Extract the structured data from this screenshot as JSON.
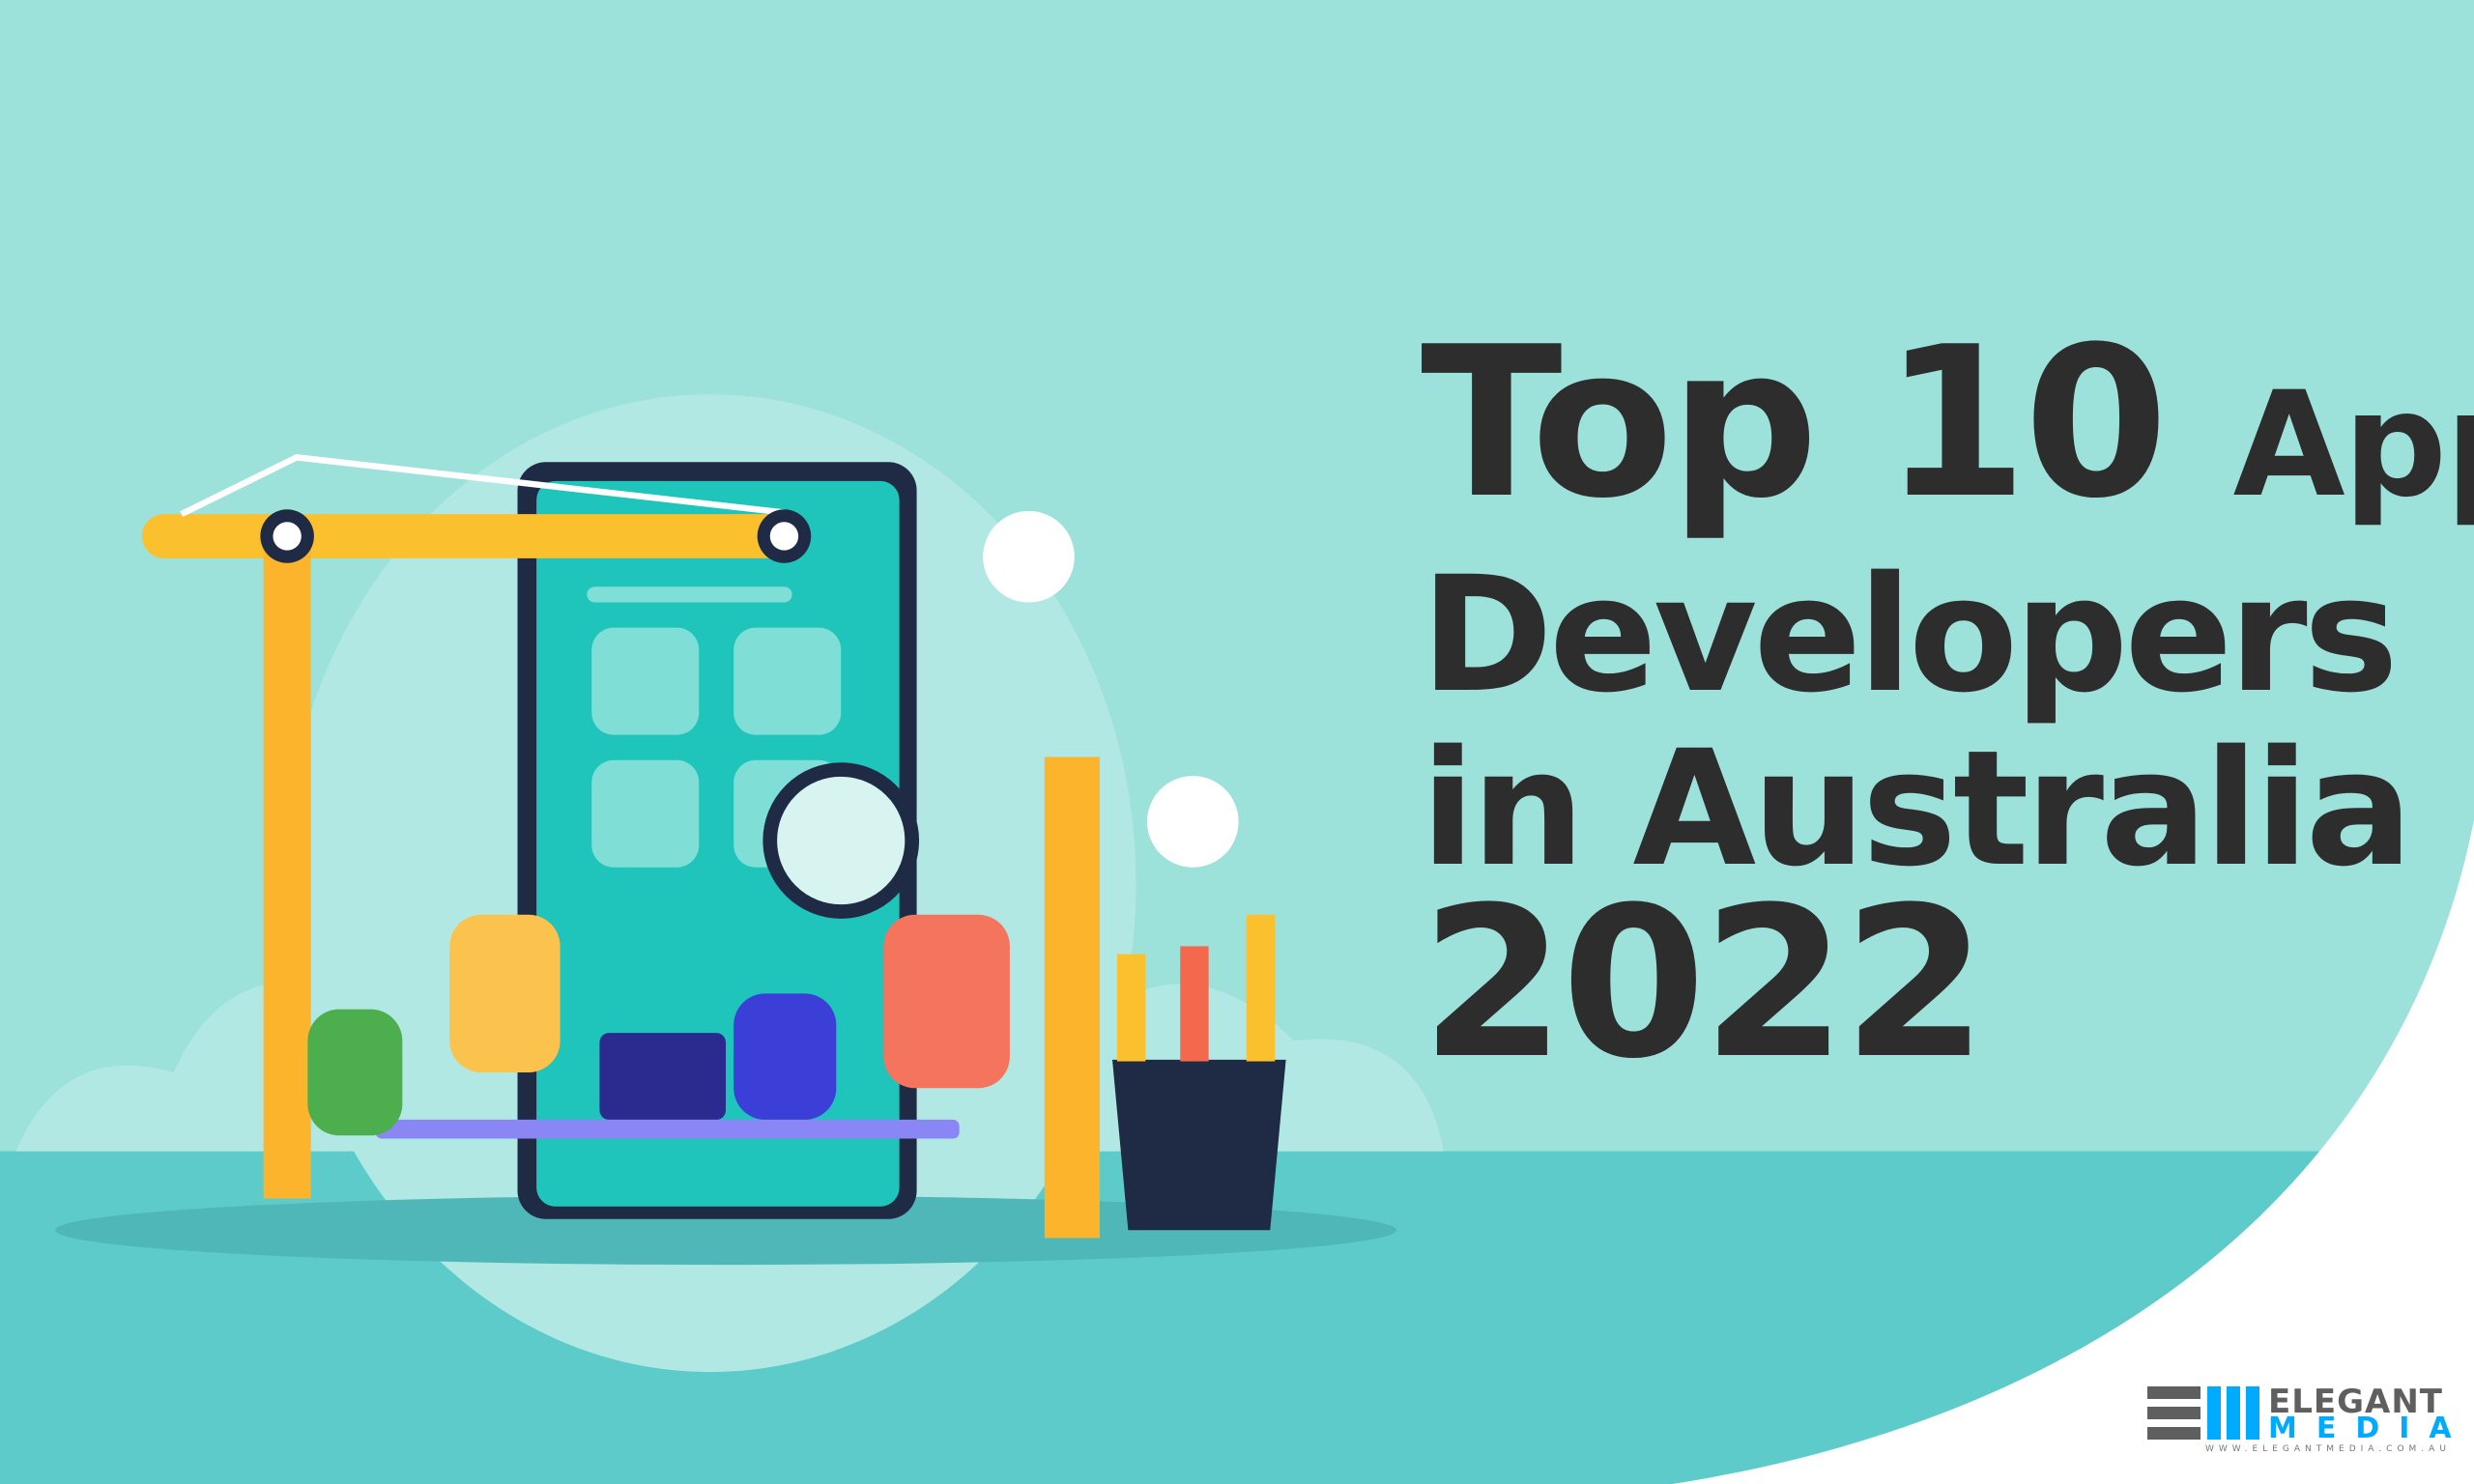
{
  "title": {
    "line1_a": "Top 10",
    "line1_b": "App",
    "line2": "Developers",
    "line3": "in Australia",
    "line4": "2022"
  },
  "logo": {
    "word1": "ELEGANT",
    "word2": "MEDIA",
    "url": "WWW.ELEGANTMEDIA.COM.AU"
  },
  "colors": {
    "background": "#9ce1da",
    "ground": "#5ecbcb",
    "text": "#2d2d2d",
    "logo_blue": "#00aaff",
    "logo_grey": "#5f5f5f"
  }
}
